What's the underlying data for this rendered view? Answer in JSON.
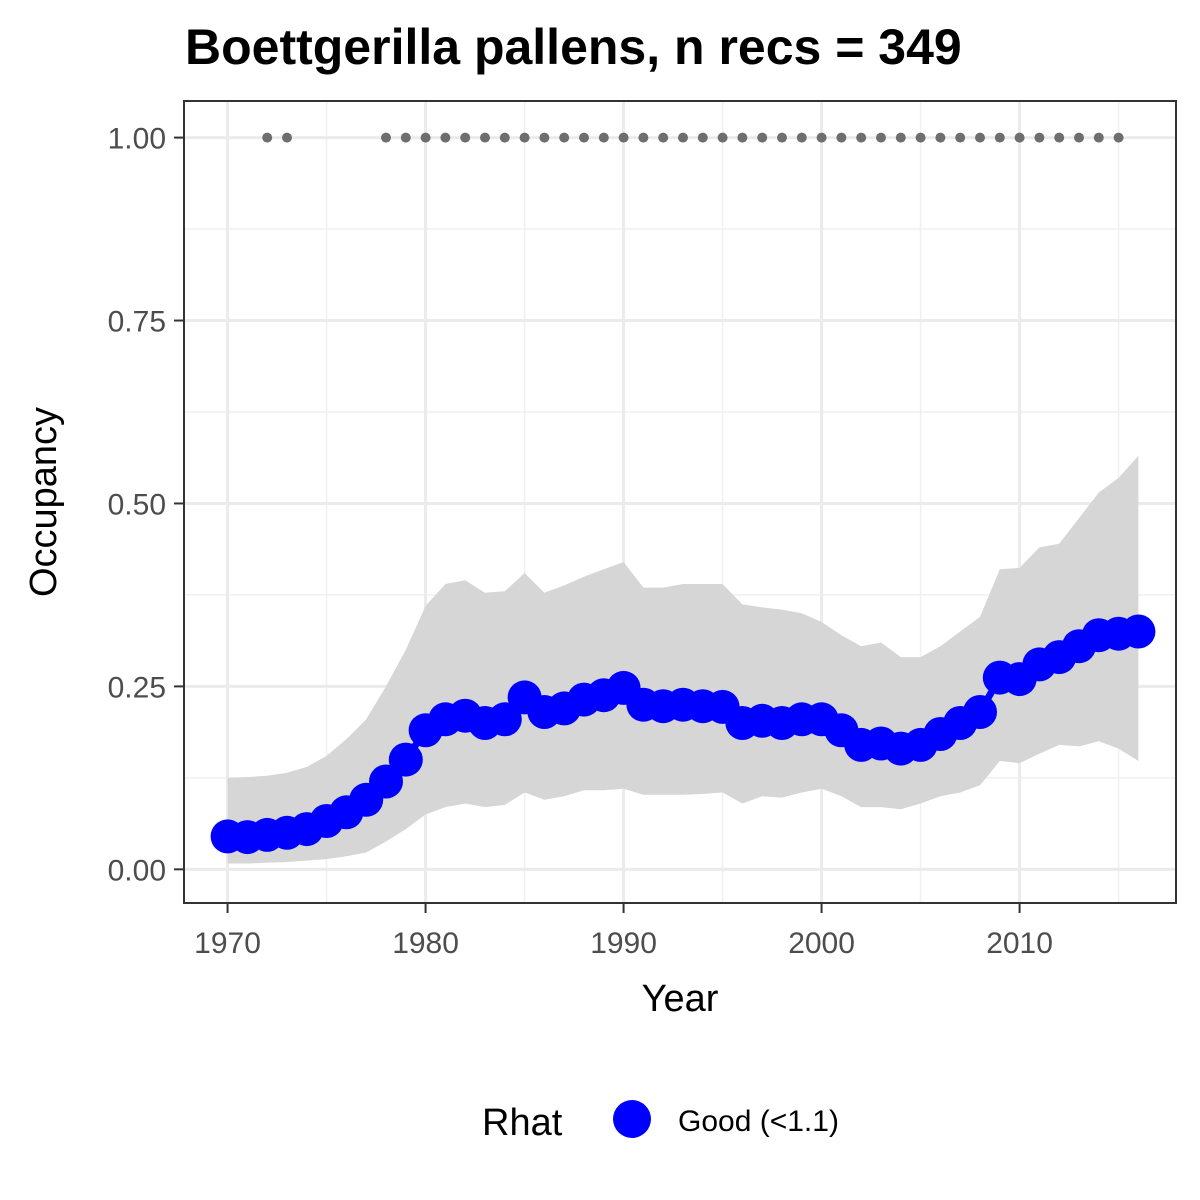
{
  "chart_data": {
    "type": "line",
    "title": "Boettgerilla pallens, n recs = 349",
    "xlabel": "Year",
    "ylabel": "Occupancy",
    "xlim": [
      1967.8,
      2017.9
    ],
    "ylim": [
      -0.046,
      1.05
    ],
    "x_ticks": [
      1970,
      1980,
      1990,
      2000,
      2010
    ],
    "x_tick_labels": [
      "1970",
      "1980",
      "1990",
      "2000",
      "2010"
    ],
    "y_ticks": [
      0,
      0.25,
      0.5,
      0.75,
      1
    ],
    "y_tick_labels": [
      "0.00",
      "0.25",
      "0.50",
      "0.75",
      "1.00"
    ],
    "grid": true,
    "legend_position": "bottom",
    "series": [
      {
        "type": "line-points",
        "color": "#0000ff",
        "x": [
          1970,
          1971,
          1972,
          1973,
          1974,
          1975,
          1976,
          1977,
          1978,
          1979,
          1980,
          1981,
          1982,
          1983,
          1984,
          1985,
          1986,
          1987,
          1988,
          1989,
          1990,
          1991,
          1992,
          1993,
          1994,
          1995,
          1996,
          1997,
          1998,
          1999,
          2000,
          2001,
          2002,
          2003,
          2004,
          2005,
          2006,
          2007,
          2008,
          2009,
          2010,
          2011,
          2012,
          2013,
          2014,
          2015,
          2016
        ],
        "y": [
          0.045,
          0.044,
          0.047,
          0.05,
          0.055,
          0.066,
          0.078,
          0.095,
          0.12,
          0.15,
          0.19,
          0.205,
          0.21,
          0.2,
          0.205,
          0.235,
          0.215,
          0.22,
          0.232,
          0.238,
          0.248,
          0.225,
          0.223,
          0.225,
          0.223,
          0.222,
          0.2,
          0.203,
          0.2,
          0.205,
          0.205,
          0.19,
          0.17,
          0.172,
          0.165,
          0.17,
          0.185,
          0.2,
          0.215,
          0.262,
          0.26,
          0.28,
          0.29,
          0.305,
          0.32,
          0.322,
          0.325
        ]
      },
      {
        "type": "ribbon",
        "color": "#d6d6d6",
        "x": [
          1970,
          1971,
          1972,
          1973,
          1974,
          1975,
          1976,
          1977,
          1978,
          1979,
          1980,
          1981,
          1982,
          1983,
          1984,
          1985,
          1986,
          1987,
          1988,
          1989,
          1990,
          1991,
          1992,
          1993,
          1994,
          1995,
          1996,
          1997,
          1998,
          1999,
          2000,
          2001,
          2002,
          2003,
          2004,
          2005,
          2006,
          2007,
          2008,
          2009,
          2010,
          2011,
          2012,
          2013,
          2014,
          2015,
          2016
        ],
        "upper": [
          0.125,
          0.126,
          0.128,
          0.132,
          0.14,
          0.155,
          0.178,
          0.205,
          0.25,
          0.3,
          0.36,
          0.39,
          0.395,
          0.378,
          0.38,
          0.405,
          0.378,
          0.388,
          0.4,
          0.41,
          0.42,
          0.385,
          0.385,
          0.39,
          0.39,
          0.39,
          0.362,
          0.358,
          0.355,
          0.35,
          0.338,
          0.32,
          0.305,
          0.31,
          0.29,
          0.29,
          0.305,
          0.325,
          0.345,
          0.41,
          0.412,
          0.44,
          0.445,
          0.48,
          0.515,
          0.535,
          0.565
        ],
        "lower": [
          0.008,
          0.008,
          0.009,
          0.01,
          0.012,
          0.014,
          0.018,
          0.023,
          0.038,
          0.055,
          0.075,
          0.085,
          0.09,
          0.085,
          0.088,
          0.105,
          0.095,
          0.1,
          0.108,
          0.108,
          0.11,
          0.102,
          0.102,
          0.102,
          0.103,
          0.105,
          0.09,
          0.1,
          0.098,
          0.105,
          0.11,
          0.1,
          0.085,
          0.085,
          0.082,
          0.09,
          0.1,
          0.105,
          0.115,
          0.148,
          0.145,
          0.158,
          0.17,
          0.168,
          0.175,
          0.165,
          0.148
        ]
      },
      {
        "type": "points",
        "color": "#6e6e6e",
        "x": [
          1972,
          1973,
          1978,
          1979,
          1980,
          1981,
          1982,
          1983,
          1984,
          1985,
          1986,
          1987,
          1988,
          1989,
          1990,
          1991,
          1992,
          1993,
          1994,
          1995,
          1996,
          1997,
          1998,
          1999,
          2000,
          2001,
          2002,
          2003,
          2004,
          2005,
          2006,
          2007,
          2008,
          2009,
          2010,
          2011,
          2012,
          2013,
          2014,
          2015
        ],
        "y_value": 1
      }
    ],
    "legend": {
      "title": "Rhat",
      "entries": [
        {
          "label": "Good (<1.1)",
          "color": "#0000ff",
          "shape": "circle"
        }
      ]
    }
  }
}
